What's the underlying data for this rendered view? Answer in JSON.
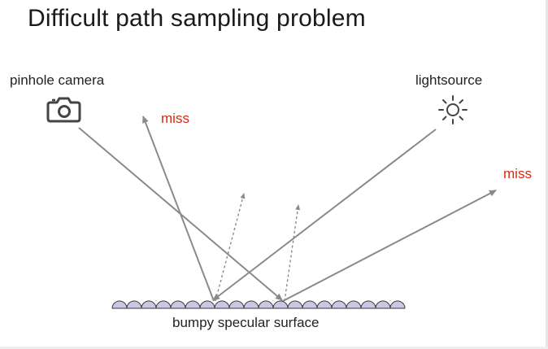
{
  "title": "Difficult path sampling problem",
  "labels": {
    "camera": "pinhole camera",
    "light": "lightsource",
    "miss_left": "miss",
    "miss_right": "miss",
    "surface": "bumpy specular surface"
  },
  "icons": {
    "camera": "camera-icon",
    "light": "sun-icon"
  },
  "colors": {
    "ray": "#8a8a8a",
    "miss": "#d42a12",
    "bump_fill": "#cbc6e3",
    "bump_stroke": "#3a3a3a"
  },
  "surface_bump_count": 20
}
